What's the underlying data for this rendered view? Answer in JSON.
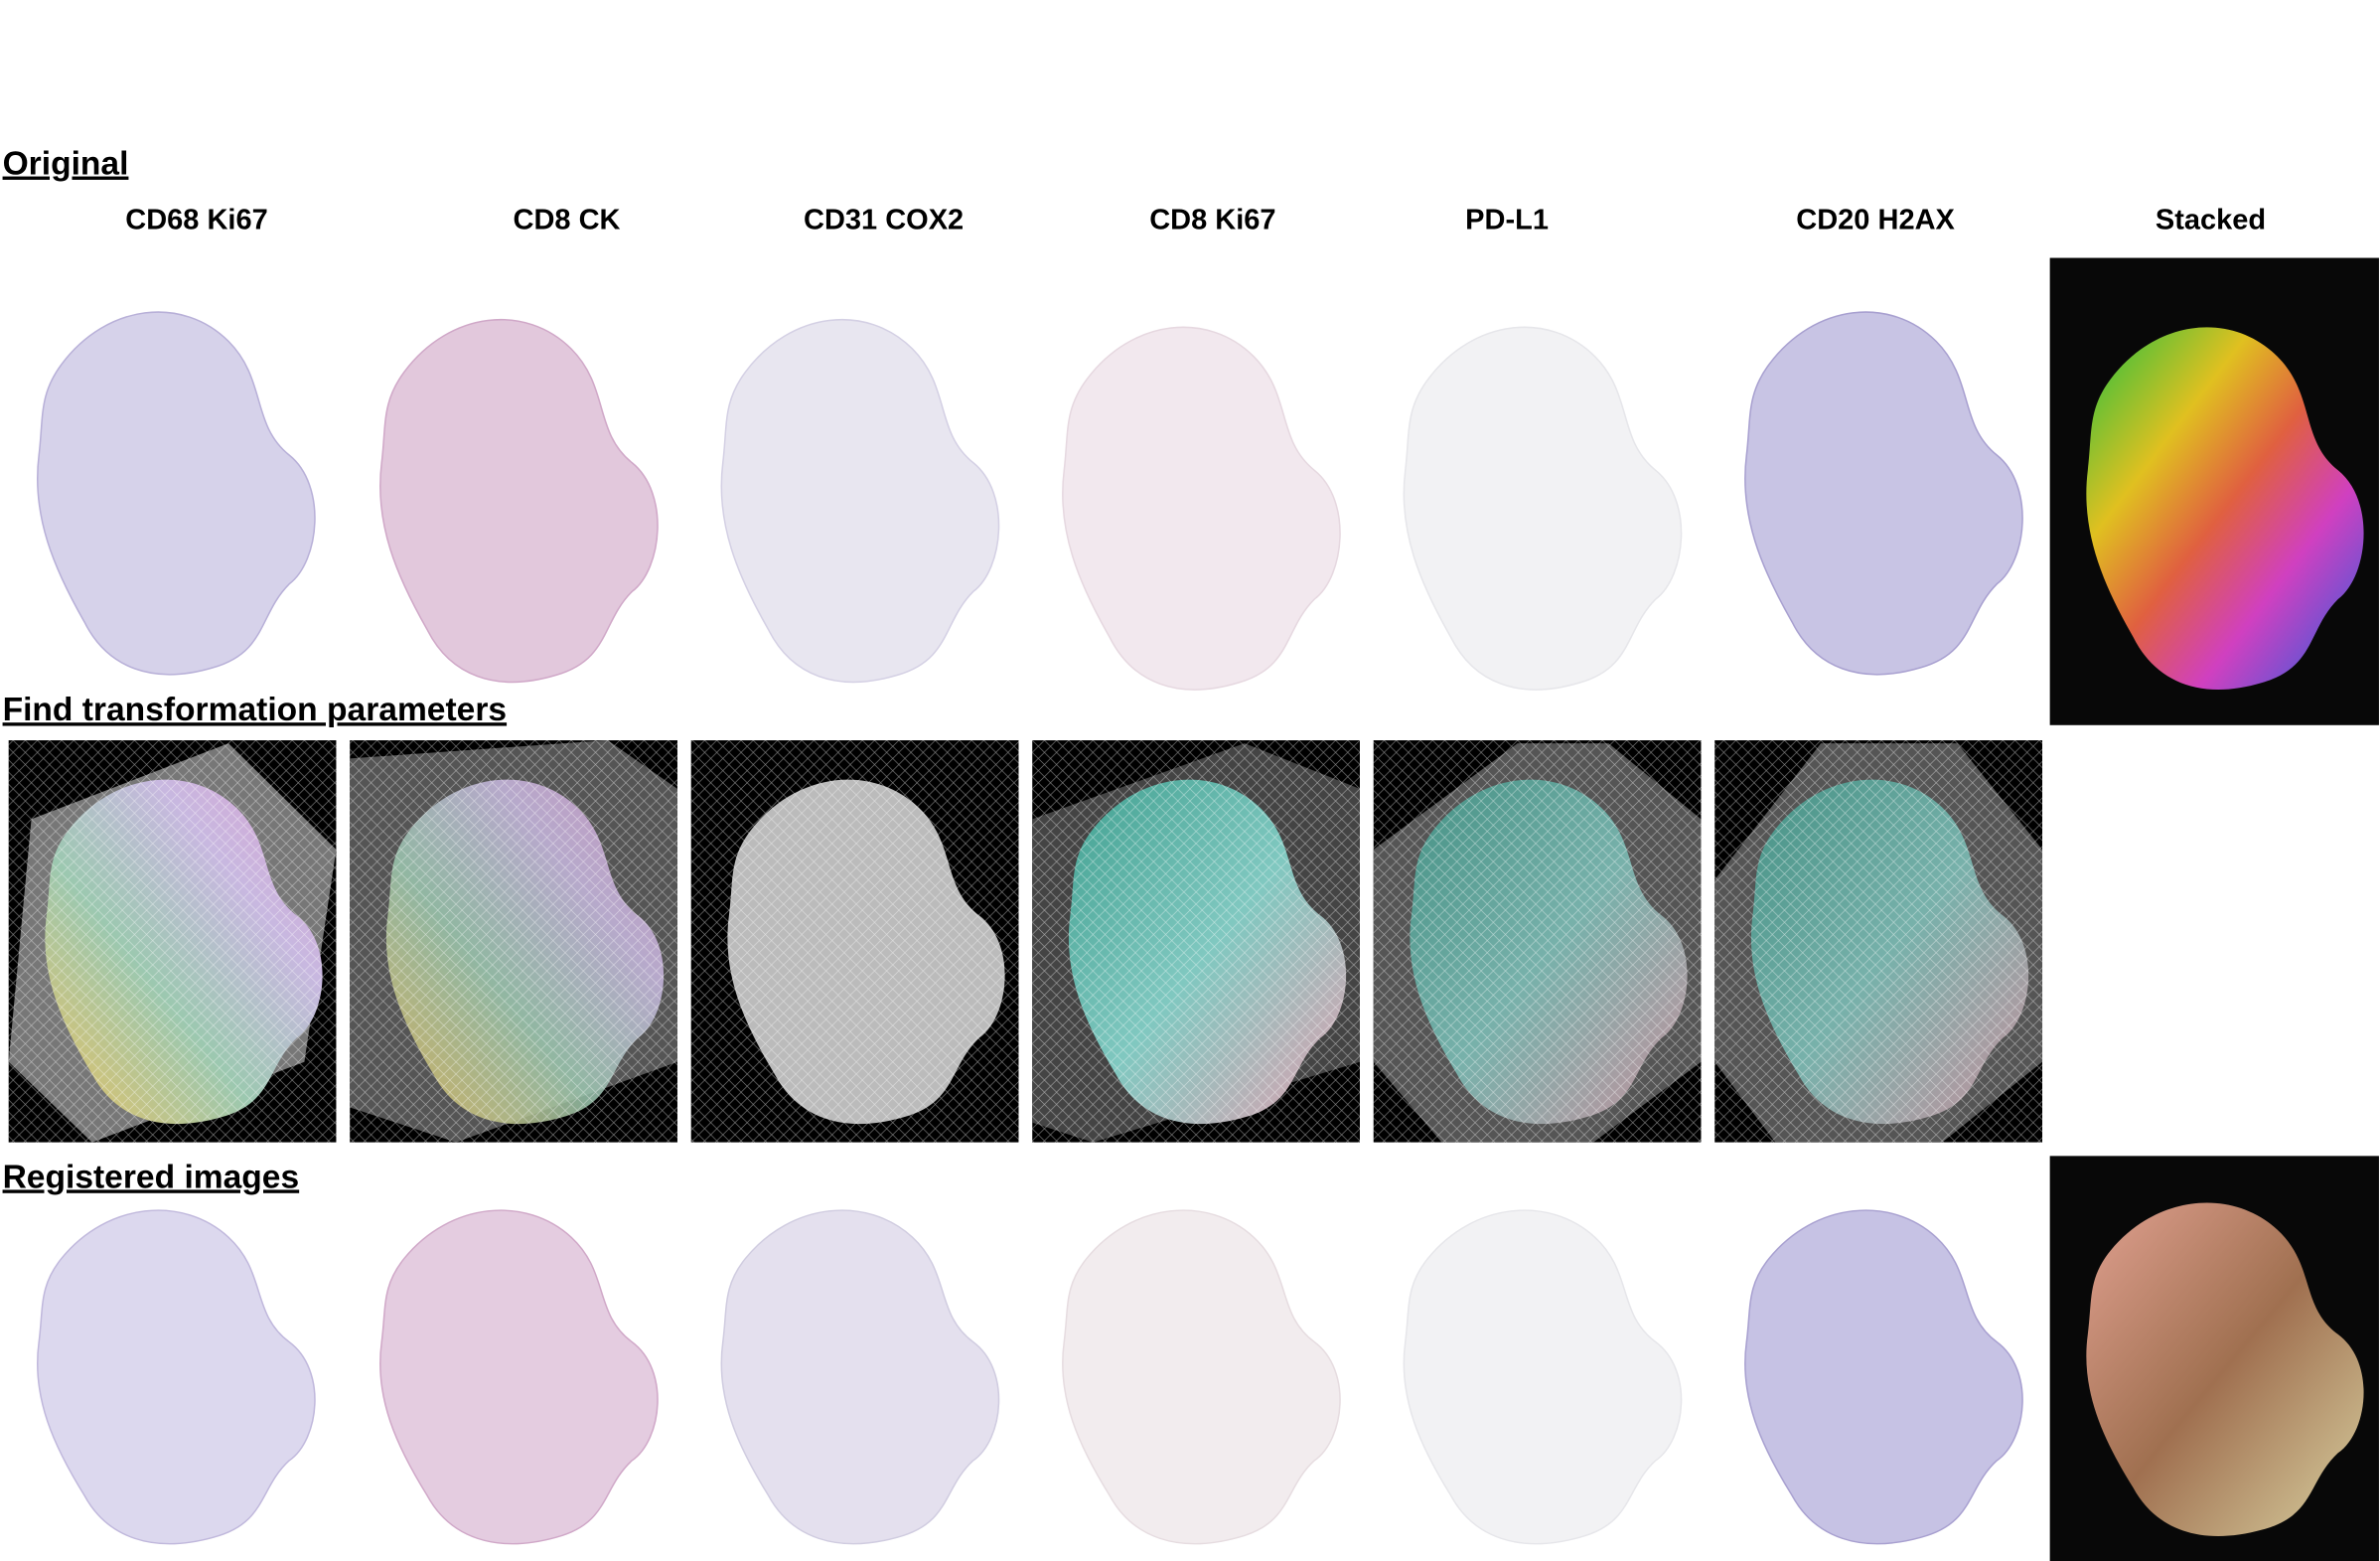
{
  "sections": [
    {
      "title": "Original"
    },
    {
      "title": "Find transformation parameters"
    },
    {
      "title": "Registered images"
    }
  ],
  "columns": [
    "CD68 Ki67",
    "CD8 CK",
    "CD31 COX2",
    "CD8 Ki67",
    "PD-L1",
    "CD20 H2AX",
    "Stacked"
  ]
}
